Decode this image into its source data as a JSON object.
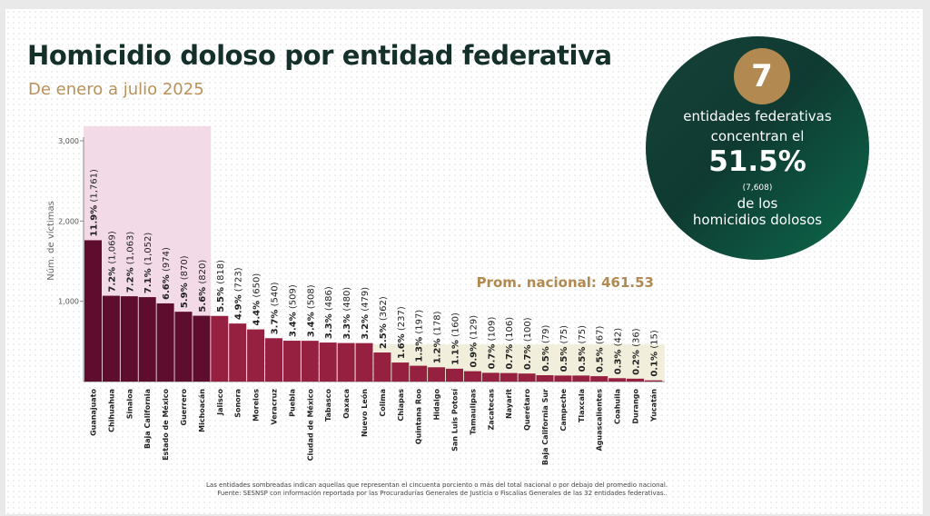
{
  "header": {
    "title": "Homicidio doloso por entidad federativa",
    "subtitle": "De enero a julio 2025"
  },
  "highlight": {
    "count": "7",
    "line1": "entidades federativas",
    "line2": "concentran el",
    "percent": "51.5%",
    "sub": "(7,608)",
    "line3": "de los",
    "line4": "homicidios dolosos"
  },
  "average_label": "Prom. nacional: 461.53",
  "footnote": {
    "line1": "Las entidades sombreadas indican aquellas que representan el cincuenta porciento o más del total nacional o por debajo del promedio nacional.",
    "line2": "Fuente: SESNSP con información reportada por las Procuradurías Generales de Justicia o Fiscalías Generales de las 32 entidades federativas.."
  },
  "colors": {
    "top_bar": "#5e0d2e",
    "bar": "#96203f",
    "top_shade": "#f2dbe7",
    "low_shade": "#f1efdc",
    "avg_text": "#b28950"
  },
  "chart_data": {
    "type": "bar",
    "title": "Homicidio doloso por entidad federativa",
    "subtitle": "De enero a julio 2025",
    "xlabel": "",
    "ylabel": "Núm. de víctimas",
    "ylim": [
      0,
      3000
    ],
    "yticks": [
      1000,
      2000,
      3000
    ],
    "ytick_labels": [
      "1,000",
      "2,000",
      "3,000"
    ],
    "average": 461.53,
    "categories": [
      "Guanajuato",
      "Chihuahua",
      "Sinaloa",
      "Baja California",
      "Estado de México",
      "Guerrero",
      "Michoacán",
      "Jalisco",
      "Sonora",
      "Morelos",
      "Veracruz",
      "Puebla",
      "Ciudad de México",
      "Tabasco",
      "Oaxaca",
      "Nuevo León",
      "Colima",
      "Chiapas",
      "Quintana Roo",
      "Hidalgo",
      "San Luis Potosí",
      "Tamaulipas",
      "Zacatecas",
      "Nayarit",
      "Querétaro",
      "Baja California Sur",
      "Campeche",
      "Tlaxcala",
      "Aguascalientes",
      "Coahuila",
      "Durango",
      "Yucatán"
    ],
    "values": [
      1761,
      1069,
      1063,
      1052,
      974,
      870,
      820,
      818,
      723,
      650,
      540,
      509,
      508,
      486,
      480,
      479,
      362,
      237,
      197,
      178,
      160,
      129,
      109,
      106,
      100,
      79,
      75,
      75,
      67,
      42,
      36,
      15
    ],
    "pct_labels": [
      "11.9%",
      "7.2%",
      "7.2%",
      "7.1%",
      "6.6%",
      "5.9%",
      "5.6%",
      "5.5%",
      "4.9%",
      "4.4%",
      "3.7%",
      "3.4%",
      "3.4%",
      "3.3%",
      "3.3%",
      "3.2%",
      "2.5%",
      "1.6%",
      "1.3%",
      "1.2%",
      "1.1%",
      "0.9%",
      "0.7%",
      "0.7%",
      "0.7%",
      "0.5%",
      "0.5%",
      "0.5%",
      "0.5%",
      "0.3%",
      "0.2%",
      "0.1%"
    ],
    "value_labels": [
      "(1,761)",
      "(1,069)",
      "(1,063)",
      "(1,052)",
      "(974)",
      "(870)",
      "(820)",
      "(818)",
      "(723)",
      "(650)",
      "(540)",
      "(509)",
      "(508)",
      "(486)",
      "(480)",
      "(479)",
      "(362)",
      "(237)",
      "(197)",
      "(178)",
      "(160)",
      "(129)",
      "(109)",
      "(106)",
      "(100)",
      "(79)",
      "(75)",
      "(75)",
      "(67)",
      "(42)",
      "(36)",
      "(15)"
    ],
    "highlighted_top_count": 7,
    "highlighted_below_average_from": "Colima"
  }
}
